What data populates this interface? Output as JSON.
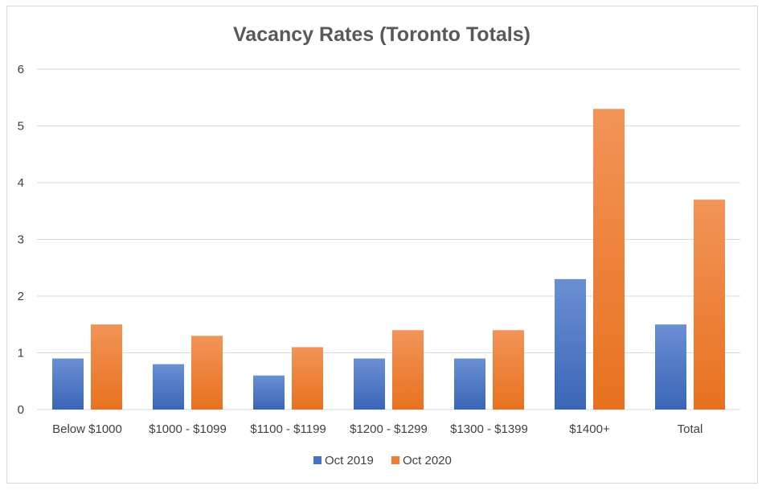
{
  "chart_data": {
    "type": "bar",
    "title": "Vacancy Rates (Toronto Totals)",
    "xlabel": "",
    "ylabel": "",
    "categories": [
      "Below $1000",
      "$1000 - $1099",
      "$1100 - $1199",
      "$1200 - $1299",
      "$1300 - $1399",
      "$1400+",
      "Total"
    ],
    "series": [
      {
        "name": "Oct 2019",
        "values": [
          0.9,
          0.8,
          0.6,
          0.9,
          0.9,
          2.3,
          1.5
        ],
        "color": "#4472c4"
      },
      {
        "name": "Oct 2020",
        "values": [
          1.5,
          1.3,
          1.1,
          1.4,
          1.4,
          5.3,
          3.7
        ],
        "color": "#ed7d31"
      }
    ],
    "ylim": [
      0,
      6
    ],
    "yticks": [
      "0",
      "1",
      "2",
      "3",
      "4",
      "5",
      "6"
    ],
    "grid": true,
    "legend": "bottom-center"
  }
}
